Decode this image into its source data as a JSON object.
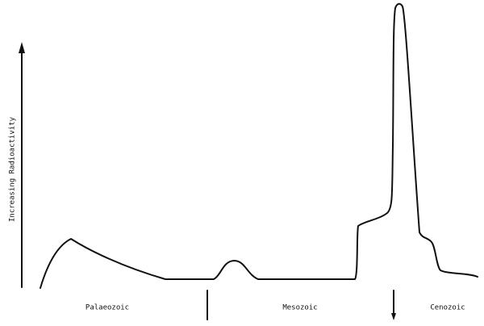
{
  "y_axis_label": "Increasing Radioactivity",
  "eras": [
    "Palaeozoic",
    "Mesozoic",
    "Cenozoic"
  ]
}
